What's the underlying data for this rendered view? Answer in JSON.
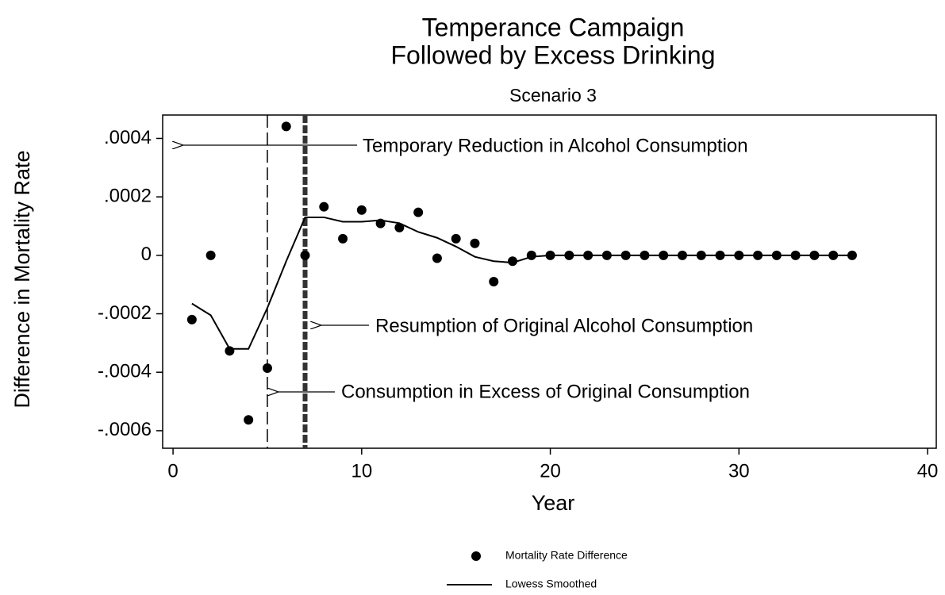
{
  "chart_data": {
    "type": "scatter",
    "title": [
      "Temperance Campaign",
      "Followed by Excess Drinking"
    ],
    "subtitle": "Scenario 3",
    "x_label": "Year",
    "y_label": "Difference in Mortality Rate",
    "x": [
      1,
      2,
      3,
      4,
      5,
      6,
      7,
      8,
      9,
      10,
      11,
      12,
      13,
      14,
      15,
      16,
      17,
      18,
      19,
      20,
      21,
      22,
      23,
      24,
      25,
      26,
      27,
      28,
      29,
      30,
      31,
      32,
      33,
      34,
      35,
      36
    ],
    "series": [
      {
        "name": "Mortality Rate Difference",
        "mode": "markers",
        "color": "#000000",
        "values": [
          -0.00022,
          0,
          -0.000327,
          -0.000563,
          -0.000386,
          0.000441,
          0,
          0.000166,
          5.7e-05,
          0.000155,
          0.000109,
          9.5e-05,
          0.000147,
          -1e-05,
          5.7e-05,
          4.1e-05,
          -9e-05,
          -2e-05,
          0,
          0,
          0,
          0,
          0,
          0,
          0,
          0,
          0,
          0,
          0,
          0,
          0,
          0,
          0,
          0,
          0,
          0
        ]
      },
      {
        "name": "Lowess Smoothed",
        "mode": "line",
        "color": "#000000",
        "values": [
          -0.000165,
          -0.000205,
          -0.00032,
          -0.00032,
          -0.00018,
          -2e-05,
          0.00013,
          0.00013,
          0.000115,
          0.000115,
          0.00012,
          0.00011,
          8e-05,
          6e-05,
          3e-05,
          -5e-06,
          -2e-05,
          -2.5e-05,
          -5e-06,
          0,
          0,
          0,
          0,
          0,
          0,
          0,
          0,
          0,
          0,
          0,
          0,
          0,
          0,
          0,
          0,
          0
        ]
      }
    ],
    "reference_lines": [
      {
        "x": 5,
        "style": "dashed"
      },
      {
        "x": 7,
        "style": "thick-dashed"
      }
    ],
    "annotations": [
      "Temporary Reduction in Alcohol Consumption",
      "Resumption of Original Alcohol Consumption",
      "Consumption in Excess of Original Consumption"
    ],
    "xlim": [
      -0.55,
      40.46
    ],
    "ylim": [
      -0.00066,
      0.00048
    ],
    "xticks": [
      0,
      10,
      20,
      30,
      40
    ],
    "yticks": [
      {
        "value": -0.0006,
        "label": "-.0006"
      },
      {
        "value": -0.0004,
        "label": "-.0004"
      },
      {
        "value": -0.0002,
        "label": "-.0002"
      },
      0,
      {
        "value": 0.0002,
        "label": ".0002"
      },
      {
        "value": 0.0004,
        "label": ".0004"
      }
    ],
    "grid": false,
    "legend": "bottom"
  }
}
